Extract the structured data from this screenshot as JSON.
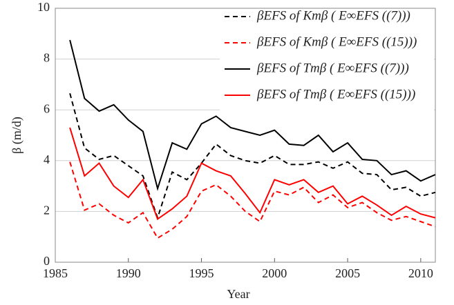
{
  "chart_data": {
    "type": "line",
    "x_label": "Year",
    "y_label": "β (m/d)",
    "x": [
      1986,
      1987,
      1988,
      1989,
      1990,
      1991,
      1992,
      1993,
      1994,
      1995,
      1996,
      1997,
      1998,
      1999,
      2000,
      2001,
      2002,
      2003,
      2004,
      2005,
      2006,
      2007,
      2008,
      2009,
      2010,
      2011
    ],
    "series": [
      {
        "name": "βEFS of Kmβ ( E∞EFS ((7)))",
        "color": "#000000",
        "style": "dashed",
        "values": [
          6.65,
          4.5,
          4.05,
          4.2,
          3.8,
          3.4,
          1.75,
          3.55,
          3.25,
          3.9,
          4.65,
          4.2,
          4.0,
          3.9,
          4.2,
          3.85,
          3.85,
          3.95,
          3.7,
          3.95,
          3.5,
          3.45,
          2.85,
          2.95,
          2.6,
          2.75
        ]
      },
      {
        "name": "βEFS of Kmβ ( E∞EFS ((15)))",
        "color": "#ff0000",
        "style": "dashed",
        "values": [
          3.95,
          2.05,
          2.3,
          1.85,
          1.55,
          1.95,
          0.95,
          1.3,
          1.8,
          2.8,
          3.05,
          2.6,
          2.0,
          1.6,
          2.8,
          2.65,
          2.95,
          2.35,
          2.65,
          2.15,
          2.35,
          1.95,
          1.65,
          1.8,
          1.6,
          1.4
        ]
      },
      {
        "name": "βEFS of Tmβ ( E∞EFS ((7)))",
        "color": "#000000",
        "style": "solid",
        "values": [
          8.75,
          6.45,
          5.95,
          6.2,
          5.6,
          5.15,
          2.9,
          4.7,
          4.45,
          5.45,
          5.75,
          5.3,
          5.15,
          5.0,
          5.2,
          4.65,
          4.6,
          5.0,
          4.35,
          4.7,
          4.05,
          4.0,
          3.45,
          3.6,
          3.2,
          3.45
        ]
      },
      {
        "name": "βEFS of Tmβ ( E∞EFS ((15)))",
        "color": "#ff0000",
        "style": "solid",
        "values": [
          5.3,
          3.4,
          3.9,
          3.0,
          2.55,
          3.25,
          1.7,
          2.1,
          2.6,
          3.9,
          3.6,
          3.4,
          2.7,
          1.95,
          3.25,
          3.05,
          3.25,
          2.75,
          3.0,
          2.3,
          2.6,
          2.25,
          1.85,
          2.2,
          1.9,
          1.75
        ]
      }
    ],
    "xlim": [
      1985,
      2011
    ],
    "xticks": [
      1985,
      1990,
      1995,
      2000,
      2005,
      2010
    ],
    "ylim": [
      0,
      10
    ],
    "yticks": [
      0,
      2,
      4,
      6,
      8,
      10
    ],
    "grid": true
  }
}
